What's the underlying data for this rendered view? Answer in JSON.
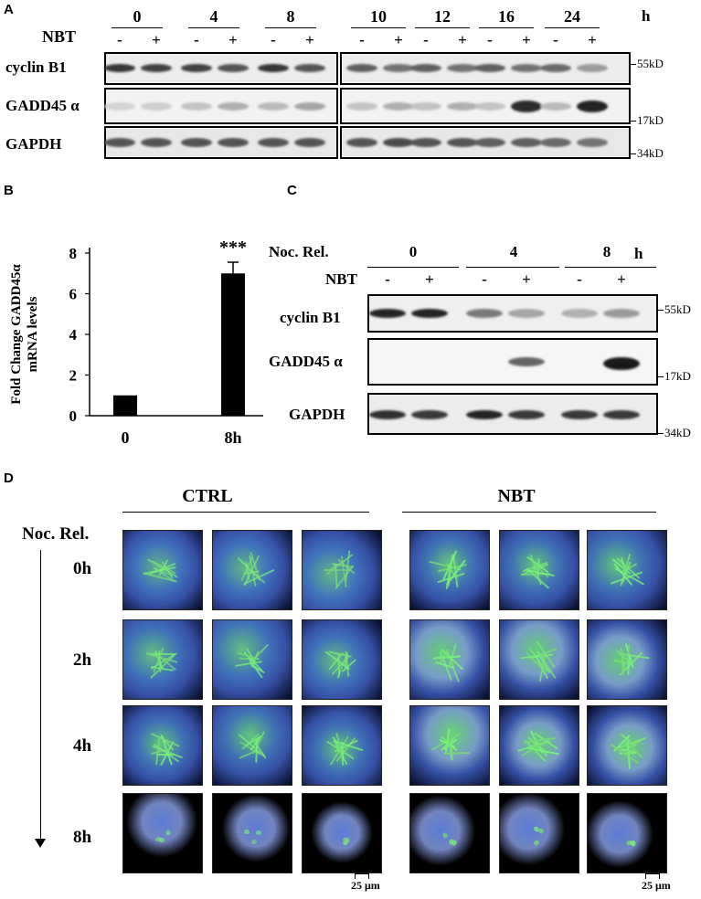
{
  "panels": {
    "a": "A",
    "b": "B",
    "c": "C",
    "d": "D"
  },
  "panel_a": {
    "timepoints_left": [
      "0",
      "4",
      "8"
    ],
    "timepoints_right": [
      "10",
      "12",
      "16",
      "24"
    ],
    "hours_unit": "h",
    "treatment_label": "NBT",
    "minus": "-",
    "plus": "+",
    "rows": [
      {
        "name": "cyclin B1",
        "marker": "55kD"
      },
      {
        "name": "GADD45 α",
        "marker": "17kD"
      },
      {
        "name": "GAPDH",
        "marker": "34kD"
      }
    ],
    "band_intensity": {
      "cyclin_b1": [
        0.9,
        0.85,
        0.85,
        0.75,
        0.9,
        0.75,
        0.7,
        0.6,
        0.7,
        0.6,
        0.7,
        0.6,
        0.65,
        0.4
      ],
      "gadd45a": [
        0.12,
        0.15,
        0.2,
        0.3,
        0.25,
        0.35,
        0.2,
        0.3,
        0.2,
        0.3,
        0.2,
        0.95,
        0.25,
        1.0
      ],
      "gapdh": [
        0.75,
        0.75,
        0.75,
        0.75,
        0.75,
        0.75,
        0.75,
        0.8,
        0.75,
        0.75,
        0.7,
        0.7,
        0.65,
        0.6
      ]
    }
  },
  "chart_data": {
    "type": "bar",
    "categories": [
      "0",
      "8h"
    ],
    "values": [
      1.0,
      7.0
    ],
    "errors": [
      0.0,
      0.55
    ],
    "ylabel": "Fold Change GADD45α mRNA levels",
    "ylabel_line1": "Fold Change GADD45α",
    "ylabel_line2": "mRNA levels",
    "yticks": [
      "0",
      "2",
      "4",
      "6",
      "8"
    ],
    "ylim": [
      0,
      8
    ],
    "annotation": "***",
    "bar_color": "#000000"
  },
  "panel_c": {
    "release_label": "Noc. Rel.",
    "timepoints": [
      "0",
      "4",
      "8"
    ],
    "hours_unit": "h",
    "treatment_label": "NBT",
    "minus": "-",
    "plus": "+",
    "rows": [
      {
        "name": "cyclin B1",
        "marker": "55kD"
      },
      {
        "name": "GADD45 α",
        "marker": "17kD"
      },
      {
        "name": "GAPDH",
        "marker": "34kD"
      }
    ],
    "band_intensity": {
      "cyclin_b1": [
        0.95,
        0.95,
        0.55,
        0.35,
        0.3,
        0.4
      ],
      "gadd45a": [
        0.05,
        0.05,
        0.05,
        0.65,
        0.05,
        1.0
      ],
      "gapdh": [
        0.9,
        0.85,
        0.95,
        0.85,
        0.85,
        0.85
      ]
    }
  },
  "panel_d": {
    "group_ctrl": "CTRL",
    "group_nbt": "NBT",
    "release_label": "Noc. Rel.",
    "row_labels": [
      "0h",
      "2h",
      "4h",
      "8h"
    ],
    "scale_bar": "25 μm",
    "colors": {
      "nucleus": "#1a3fa8",
      "microtubule": "#3ed05a",
      "background": "#000000"
    }
  }
}
